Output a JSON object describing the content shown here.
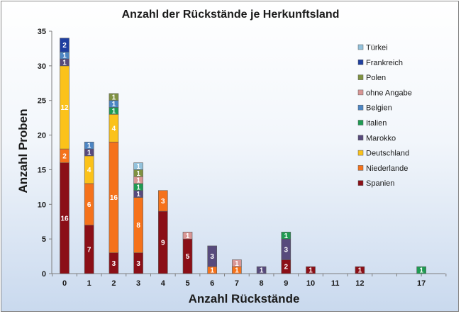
{
  "chart_data": {
    "type": "bar",
    "stacked": true,
    "title": "Anzahl der Rückstände je Herkunftsland",
    "xlabel": "Anzahl  Rückstände",
    "ylabel": "Anzahl  Proben",
    "ylim": [
      0,
      35
    ],
    "yticks": [
      0,
      5,
      10,
      15,
      20,
      25,
      30,
      35
    ],
    "grid": false,
    "legend_position": "right",
    "categories": [
      "0",
      "1",
      "2",
      "3",
      "4",
      "5",
      "6",
      "7",
      "8",
      "9",
      "10",
      "11",
      "12",
      "17"
    ],
    "category_slots": [
      0,
      1,
      2,
      3,
      4,
      5,
      6,
      7,
      8,
      9,
      10,
      11,
      12,
      14.5
    ],
    "series": [
      {
        "name": "Spanien",
        "color": "#8b0f17",
        "values": [
          16,
          7,
          3,
          3,
          9,
          5,
          0,
          0,
          0,
          2,
          1,
          0,
          1,
          0
        ]
      },
      {
        "name": "Niederlande",
        "color": "#f5721b",
        "values": [
          2,
          6,
          16,
          8,
          3,
          0,
          1,
          1,
          0,
          0,
          0,
          0,
          0,
          0
        ]
      },
      {
        "name": "Deutschland",
        "color": "#fbc21a",
        "values": [
          12,
          4,
          4,
          0,
          0,
          0,
          0,
          0,
          0,
          0,
          0,
          0,
          0,
          0
        ]
      },
      {
        "name": "Marokko",
        "color": "#574a7c",
        "values": [
          1,
          1,
          0,
          1,
          0,
          0,
          3,
          0,
          1,
          3,
          0,
          0,
          0,
          0
        ]
      },
      {
        "name": "Italien",
        "color": "#1f9b53",
        "values": [
          0,
          0,
          1,
          1,
          0,
          0,
          0,
          0,
          0,
          1,
          0,
          0,
          0,
          1
        ]
      },
      {
        "name": "Belgien",
        "color": "#4d86c4",
        "values": [
          1,
          1,
          1,
          0,
          0,
          0,
          0,
          0,
          0,
          0,
          0,
          0,
          0,
          0
        ]
      },
      {
        "name": "ohne Angabe",
        "color": "#d99695",
        "values": [
          0,
          0,
          0,
          1,
          0,
          1,
          0,
          1,
          0,
          0,
          0,
          0,
          0,
          0
        ]
      },
      {
        "name": "Polen",
        "color": "#7f9242",
        "values": [
          0,
          0,
          1,
          1,
          0,
          0,
          0,
          0,
          0,
          0,
          0,
          0,
          0,
          0
        ]
      },
      {
        "name": "Frankreich",
        "color": "#1f3fa0",
        "values": [
          2,
          0,
          0,
          0,
          0,
          0,
          0,
          0,
          0,
          0,
          0,
          0,
          0,
          0
        ]
      },
      {
        "name": "Türkei",
        "color": "#93c2dc",
        "values": [
          0,
          0,
          0,
          1,
          0,
          0,
          0,
          0,
          0,
          0,
          0,
          0,
          0,
          0
        ]
      }
    ],
    "legend_order": [
      "Türkei",
      "Frankreich",
      "Polen",
      "ohne Angabe",
      "Belgien",
      "Italien",
      "Marokko",
      "Deutschland",
      "Niederlande",
      "Spanien"
    ]
  }
}
